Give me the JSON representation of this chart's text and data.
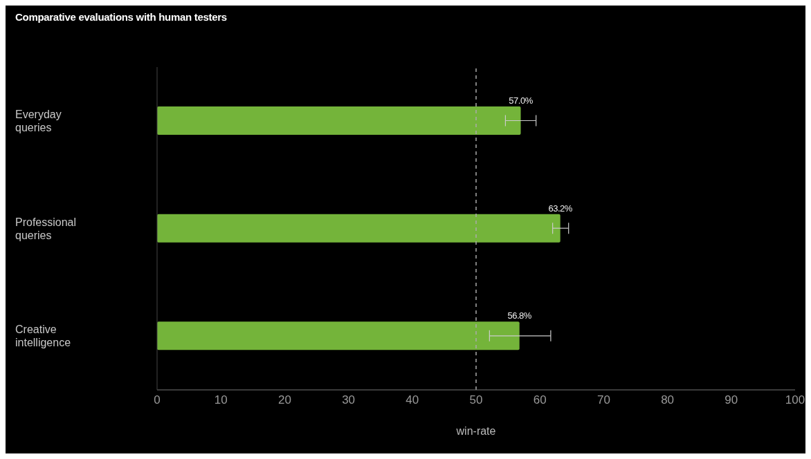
{
  "chart_data": {
    "type": "bar",
    "orientation": "horizontal",
    "title": "Comparative evaluations with human testers",
    "xlabel": "win-rate",
    "categories": [
      "Everyday queries",
      "Professional queries",
      "Creative intelligence"
    ],
    "values": [
      57.0,
      63.2,
      56.8
    ],
    "color": "#74b43a",
    "errors": [
      [
        54.6,
        59.4
      ],
      [
        62.0,
        64.5
      ],
      [
        52.1,
        61.7
      ]
    ],
    "value_labels": [
      "57.0%",
      "63.2%",
      "56.8%"
    ],
    "xlim": [
      0,
      100
    ],
    "xticks": [
      0,
      10,
      20,
      30,
      40,
      50,
      60,
      70,
      80,
      90,
      100
    ],
    "ref_lines": [
      {
        "axis": "x",
        "value": 50,
        "line_style": "dashed",
        "color": "#aaaaaa"
      }
    ],
    "grid": false
  }
}
